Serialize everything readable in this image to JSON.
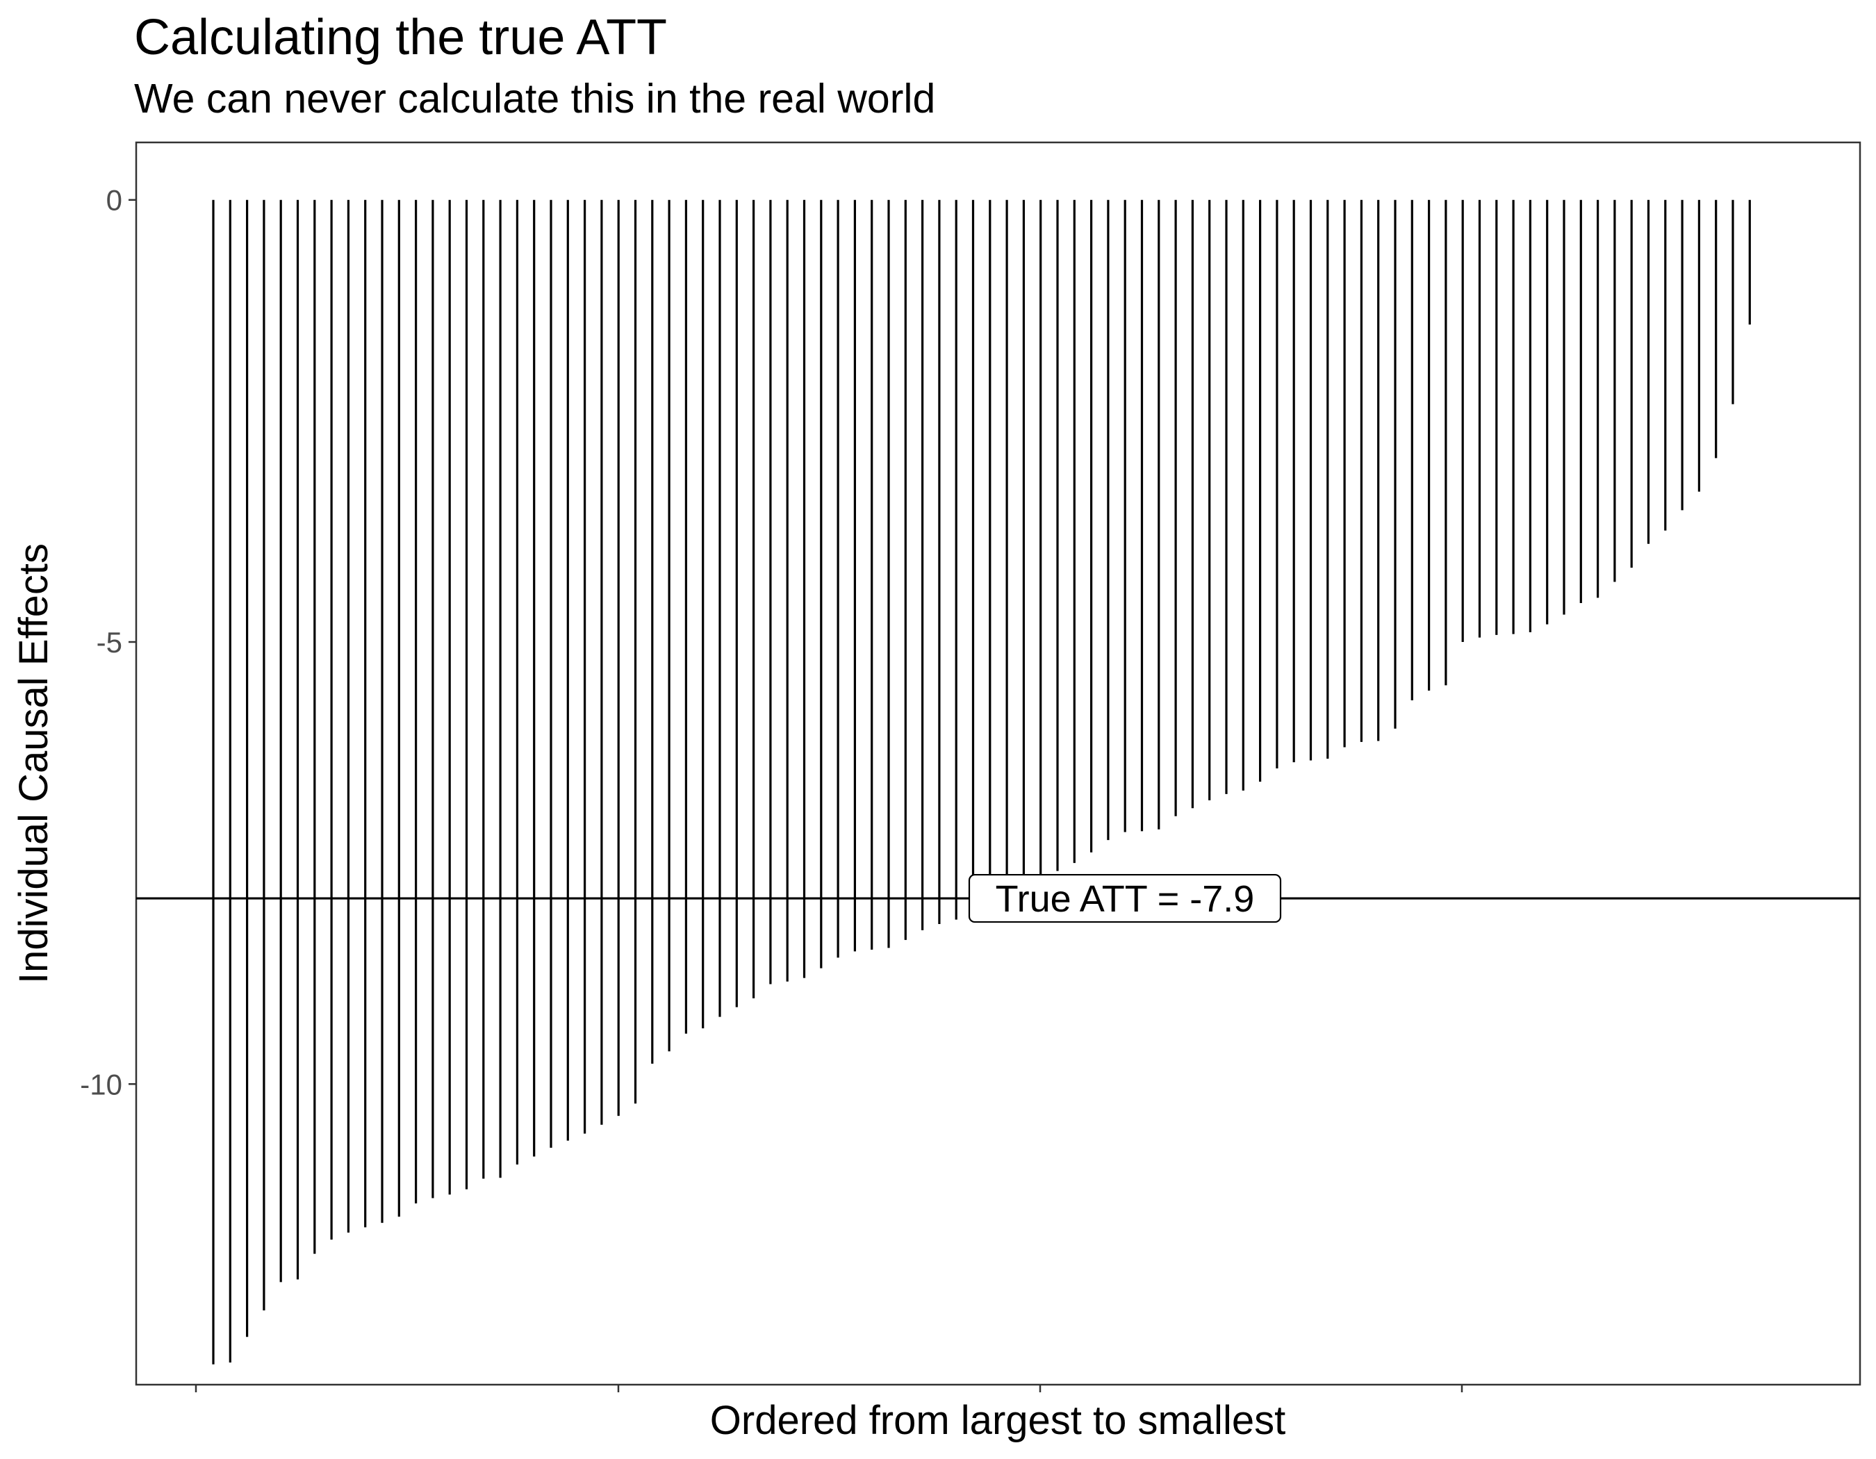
{
  "chart_data": {
    "type": "bar",
    "title": "Calculating the true ATT",
    "subtitle": "We can never calculate this in the real world",
    "xlabel": "Ordered from largest to smallest",
    "ylabel": "Individual Causal Effects",
    "y_ticks": [
      "0",
      "-5",
      "-10"
    ],
    "ylim": [
      -13.4,
      0.65
    ],
    "grid": false,
    "x_ticks_labeled": false,
    "reference_line": {
      "value": -7.9,
      "label": "True ATT = -7.9"
    },
    "values": [
      -13.17,
      -13.15,
      -12.86,
      -12.56,
      -12.24,
      -12.21,
      -11.92,
      -11.76,
      -11.68,
      -11.62,
      -11.57,
      -11.5,
      -11.35,
      -11.29,
      -11.25,
      -11.19,
      -11.07,
      -11.06,
      -10.91,
      -10.82,
      -10.72,
      -10.64,
      -10.56,
      -10.46,
      -10.36,
      -10.22,
      -9.77,
      -9.63,
      -9.43,
      -9.37,
      -9.24,
      -9.13,
      -9.03,
      -8.87,
      -8.84,
      -8.8,
      -8.69,
      -8.57,
      -8.5,
      -8.48,
      -8.46,
      -8.37,
      -8.26,
      -8.19,
      -8.14,
      -7.99,
      -7.86,
      -7.74,
      -7.71,
      -7.63,
      -7.59,
      -7.5,
      -7.38,
      -7.24,
      -7.15,
      -7.14,
      -7.12,
      -6.97,
      -6.88,
      -6.79,
      -6.72,
      -6.68,
      -6.58,
      -6.43,
      -6.36,
      -6.34,
      -6.32,
      -6.19,
      -6.13,
      -6.12,
      -5.98,
      -5.66,
      -5.55,
      -5.49,
      -5.0,
      -4.95,
      -4.92,
      -4.91,
      -4.89,
      -4.8,
      -4.69,
      -4.56,
      -4.5,
      -4.32,
      -4.16,
      -3.89,
      -3.74,
      -3.51,
      -3.3,
      -2.92,
      -2.31,
      -1.41
    ]
  }
}
